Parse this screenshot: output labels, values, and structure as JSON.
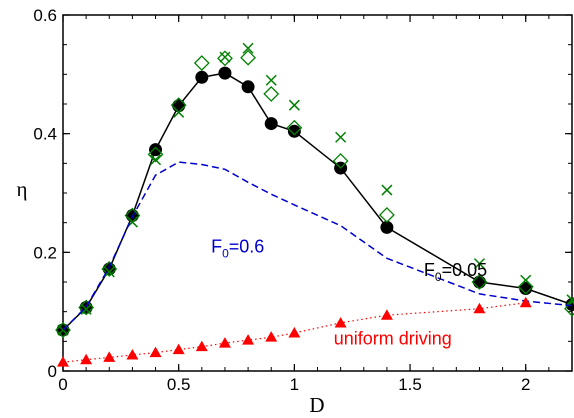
{
  "chart_data": {
    "type": "line",
    "xlabel": "D",
    "ylabel": "η",
    "xlim": [
      0,
      2.2
    ],
    "ylim": [
      0,
      0.6
    ],
    "xticks": [
      0,
      0.5,
      1,
      1.5,
      2
    ],
    "xtick_labels": [
      "0",
      "0.5",
      "1",
      "1.5",
      "2"
    ],
    "yticks": [
      0,
      0.2,
      0.4,
      0.6
    ],
    "ytick_labels": [
      "0",
      "0.2",
      "0.4",
      "0.6"
    ],
    "grid": false,
    "series": [
      {
        "style": "black-line-filled-circles",
        "color": "#000000",
        "x": [
          0,
          0.1,
          0.2,
          0.3,
          0.4,
          0.5,
          0.6,
          0.7,
          0.8,
          0.9,
          1.0,
          1.2,
          1.4,
          1.8,
          2.0,
          2.2
        ],
        "y": [
          0.069,
          0.107,
          0.172,
          0.262,
          0.373,
          0.447,
          0.495,
          0.502,
          0.479,
          0.417,
          0.404,
          0.342,
          0.242,
          0.15,
          0.139,
          0.112
        ]
      },
      {
        "style": "green-diamonds",
        "color": "#008000",
        "x": [
          0,
          0.1,
          0.2,
          0.3,
          0.4,
          0.5,
          0.6,
          0.7,
          0.8,
          0.9,
          1.0,
          1.2,
          1.4,
          1.8,
          2.0,
          2.2
        ],
        "y": [
          0.069,
          0.107,
          0.172,
          0.262,
          0.365,
          0.448,
          0.519,
          0.527,
          0.528,
          0.467,
          0.41,
          0.354,
          0.263,
          0.15,
          0.142,
          0.105
        ]
      },
      {
        "style": "green-x",
        "color": "#008000",
        "x": [
          0,
          0.1,
          0.2,
          0.3,
          0.4,
          0.5,
          0.7,
          0.8,
          0.9,
          1.0,
          1.2,
          1.4,
          1.8,
          2.0,
          2.2
        ],
        "y": [
          0.069,
          0.104,
          0.167,
          0.251,
          0.356,
          0.436,
          0.529,
          0.544,
          0.49,
          0.448,
          0.394,
          0.305,
          0.181,
          0.153,
          0.12
        ]
      },
      {
        "style": "blue-dashed",
        "color": "#0000cd",
        "x": [
          0,
          0.1,
          0.2,
          0.3,
          0.4,
          0.5,
          0.6,
          0.7,
          0.8,
          0.9,
          1.0,
          1.2,
          1.4,
          1.6,
          1.8,
          2.0,
          2.2
        ],
        "y": [
          0.069,
          0.108,
          0.175,
          0.26,
          0.33,
          0.352,
          0.348,
          0.34,
          0.318,
          0.298,
          0.28,
          0.245,
          0.19,
          0.16,
          0.13,
          0.118,
          0.11
        ]
      },
      {
        "style": "red-dotted-triangles",
        "color": "#ff0000",
        "x": [
          0,
          0.1,
          0.2,
          0.3,
          0.4,
          0.5,
          0.6,
          0.7,
          0.8,
          0.9,
          1.0,
          1.2,
          1.4,
          1.8,
          2.0
        ],
        "y": [
          0.015,
          0.019,
          0.023,
          0.027,
          0.031,
          0.036,
          0.041,
          0.047,
          0.052,
          0.057,
          0.064,
          0.081,
          0.094,
          0.105,
          0.115
        ]
      }
    ],
    "annotations": [
      {
        "main": "F",
        "sub": "0",
        "rest": "=0.6",
        "color": "#0000cd",
        "x": 0.64,
        "y": 0.2
      },
      {
        "main": "F",
        "sub": "0",
        "rest": "=0.05",
        "color": "#000000",
        "x": 1.56,
        "y": 0.16
      },
      {
        "text": "uniform driving",
        "color": "#ff0000",
        "x": 1.17,
        "y": 0.045
      }
    ]
  }
}
